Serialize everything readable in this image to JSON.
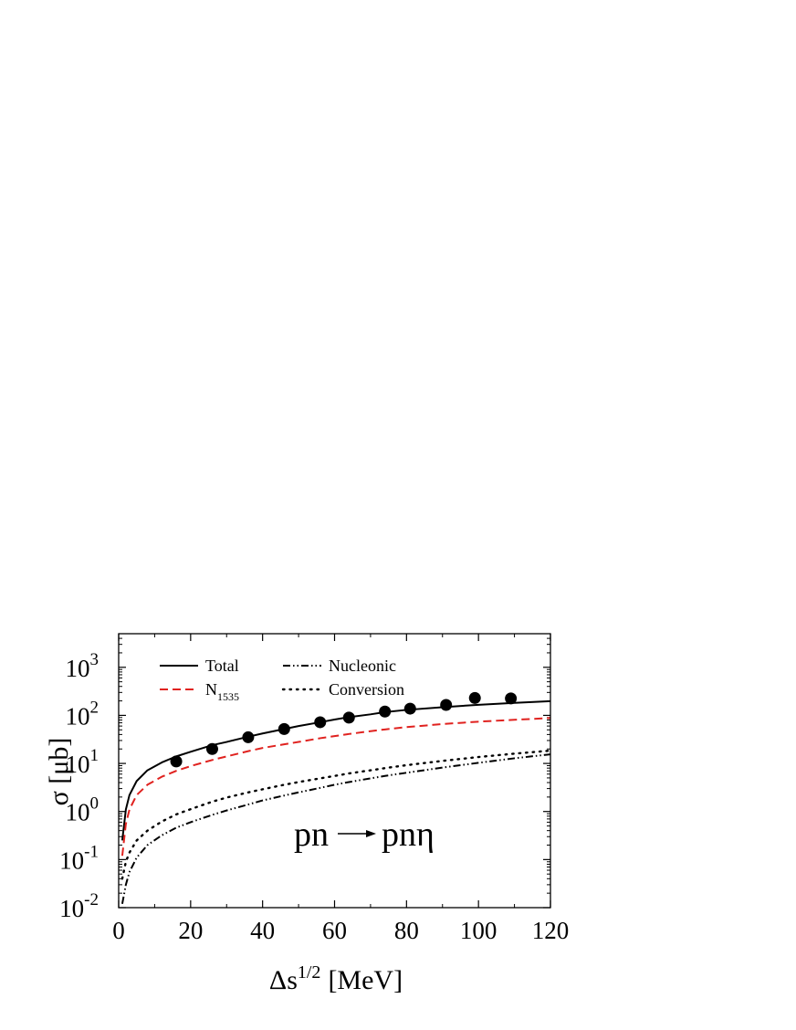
{
  "chart_data": {
    "type": "line",
    "xlabel": "Δs",
    "xlabel_sup": "1/2",
    "xlabel_unit": "[MeV]",
    "ylabel": "σ [μb]",
    "xlim": [
      0,
      120
    ],
    "ylim": [
      0.01,
      5000
    ],
    "yscale": "log",
    "x_ticks": [
      0,
      20,
      40,
      60,
      80,
      100,
      120
    ],
    "y_ticks": [
      {
        "value": 0.01,
        "base": "10",
        "exp": "-2"
      },
      {
        "value": 0.1,
        "base": "10",
        "exp": "-1"
      },
      {
        "value": 1,
        "base": "10",
        "exp": "0"
      },
      {
        "value": 10,
        "base": "10",
        "exp": "1"
      },
      {
        "value": 100,
        "base": "10",
        "exp": "2"
      },
      {
        "value": 1000,
        "base": "10",
        "exp": "3"
      }
    ],
    "grid": false,
    "legend_position": "top-left",
    "annotation": {
      "left": "pn",
      "right": "pnη"
    },
    "series": [
      {
        "name": "Total",
        "style": "solid",
        "color": "#000000",
        "x": [
          1,
          2,
          3,
          5,
          8,
          12,
          16,
          20,
          26,
          30,
          36,
          40,
          46,
          50,
          56,
          60,
          64,
          70,
          74,
          80,
          90,
          100,
          110,
          120
        ],
        "y": [
          0.25,
          1.1,
          2.2,
          4.3,
          7.2,
          10.5,
          14,
          17.5,
          24,
          28,
          36,
          42,
          52,
          60,
          72,
          82,
          92,
          105,
          117,
          130,
          148,
          166,
          182,
          198
        ]
      },
      {
        "name": "N",
        "name_sub": "1535",
        "style": "dashed",
        "color": "#e0221f",
        "x": [
          1,
          2,
          3,
          5,
          8,
          12,
          16,
          20,
          26,
          30,
          36,
          40,
          46,
          50,
          56,
          60,
          64,
          70,
          74,
          80,
          90,
          100,
          110,
          120
        ],
        "y": [
          0.12,
          0.55,
          1.1,
          2.2,
          3.6,
          5.3,
          7,
          8.8,
          11.8,
          14,
          18,
          21,
          25,
          28,
          33.5,
          37,
          41,
          47,
          51,
          57,
          66,
          74,
          81,
          88
        ]
      },
      {
        "name": "Nucleonic",
        "style": "dashdotdot",
        "color": "#000000",
        "x": [
          1,
          2,
          3,
          5,
          8,
          12,
          16,
          20,
          26,
          30,
          36,
          40,
          46,
          50,
          56,
          60,
          64,
          70,
          74,
          80,
          90,
          100,
          110,
          120
        ],
        "y": [
          0.012,
          0.03,
          0.055,
          0.11,
          0.2,
          0.32,
          0.46,
          0.6,
          0.85,
          1.05,
          1.4,
          1.7,
          2.15,
          2.5,
          3.1,
          3.6,
          4.1,
          4.9,
          5.5,
          6.4,
          8.2,
          10.3,
          12.8,
          15.5
        ]
      },
      {
        "name": "Conversion",
        "style": "dotted",
        "color": "#000000",
        "x": [
          1,
          2,
          3,
          5,
          8,
          12,
          16,
          20,
          26,
          30,
          36,
          40,
          46,
          50,
          56,
          60,
          64,
          70,
          74,
          80,
          90,
          100,
          110,
          120
        ],
        "y": [
          0.04,
          0.09,
          0.14,
          0.25,
          0.4,
          0.62,
          0.87,
          1.12,
          1.6,
          1.95,
          2.5,
          2.9,
          3.6,
          4.1,
          4.9,
          5.5,
          6.2,
          7.2,
          8,
          9.2,
          11.3,
          13.6,
          16,
          18.5
        ]
      }
    ],
    "points": {
      "name": "data",
      "marker": "filled-circle",
      "color": "#000000",
      "x": [
        16,
        26,
        36,
        46,
        56,
        64,
        74,
        81,
        91,
        99,
        109
      ],
      "y": [
        11,
        20,
        35,
        52,
        72,
        90,
        120,
        138,
        165,
        230,
        225
      ]
    }
  }
}
